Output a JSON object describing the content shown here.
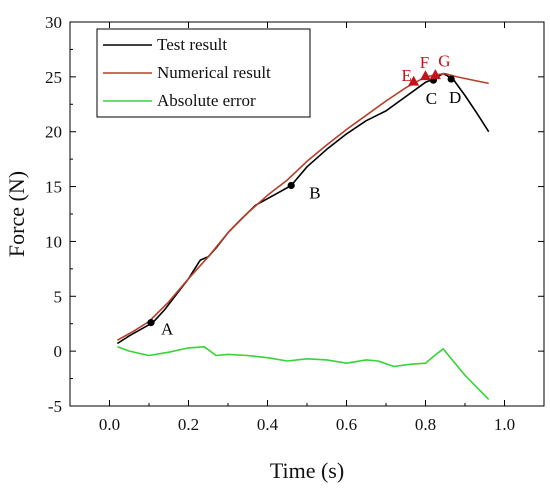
{
  "chart_data": {
    "type": "line",
    "xlabel": "Time (s)",
    "ylabel": "Force (N)",
    "xlim": [
      -0.1,
      1.1
    ],
    "ylim": [
      -5,
      30
    ],
    "xticks": [
      0.0,
      0.2,
      0.4,
      0.6,
      0.8,
      1.0
    ],
    "xtick_labels": [
      "0.0",
      "0.2",
      "0.4",
      "0.6",
      "0.8",
      "1.0"
    ],
    "yticks": [
      -5,
      0,
      5,
      10,
      15,
      20,
      25,
      30
    ],
    "ytick_labels": [
      "-5",
      "0",
      "5",
      "10",
      "15",
      "20",
      "25",
      "30"
    ],
    "grid": false,
    "legend_position": "top-left",
    "series": [
      {
        "name": "Test result",
        "color": "#000000",
        "x": [
          0.02,
          0.05,
          0.08,
          0.11,
          0.14,
          0.17,
          0.2,
          0.23,
          0.25,
          0.27,
          0.3,
          0.33,
          0.37,
          0.42,
          0.46,
          0.5,
          0.55,
          0.6,
          0.65,
          0.7,
          0.75,
          0.8,
          0.82,
          0.845,
          0.87,
          0.9,
          0.93,
          0.96
        ],
        "y": [
          0.7,
          1.4,
          2.0,
          2.6,
          3.8,
          5.2,
          6.6,
          8.3,
          8.6,
          9.4,
          10.8,
          11.9,
          13.3,
          14.3,
          15.1,
          16.8,
          18.4,
          19.8,
          21.0,
          21.9,
          23.2,
          24.5,
          24.8,
          25.3,
          24.8,
          23.3,
          21.7,
          20.0
        ]
      },
      {
        "name": "Numerical result",
        "color": "#b5402a",
        "x": [
          0.02,
          0.06,
          0.1,
          0.15,
          0.2,
          0.25,
          0.3,
          0.35,
          0.4,
          0.45,
          0.5,
          0.55,
          0.6,
          0.65,
          0.7,
          0.75,
          0.78,
          0.8,
          0.83,
          0.85,
          0.88,
          0.92,
          0.96
        ],
        "y": [
          1.0,
          1.8,
          2.7,
          4.5,
          6.6,
          8.6,
          10.8,
          12.6,
          14.2,
          15.6,
          17.3,
          18.8,
          20.2,
          21.5,
          22.8,
          24.0,
          24.6,
          25.0,
          25.2,
          25.3,
          25.0,
          24.7,
          24.4
        ]
      },
      {
        "name": "Absolute error",
        "color": "#38d338",
        "x": [
          0.02,
          0.05,
          0.1,
          0.15,
          0.2,
          0.24,
          0.27,
          0.3,
          0.35,
          0.4,
          0.45,
          0.5,
          0.55,
          0.6,
          0.65,
          0.68,
          0.72,
          0.76,
          0.8,
          0.83,
          0.845,
          0.87,
          0.9,
          0.93,
          0.96
        ],
        "y": [
          0.4,
          0.0,
          -0.4,
          -0.1,
          0.3,
          0.4,
          -0.4,
          -0.3,
          -0.4,
          -0.6,
          -0.9,
          -0.7,
          -0.8,
          -1.1,
          -0.8,
          -0.9,
          -1.4,
          -1.2,
          -1.1,
          -0.2,
          0.2,
          -0.9,
          -2.2,
          -3.3,
          -4.4
        ]
      }
    ],
    "points": [
      {
        "label": "A",
        "x": 0.105,
        "y": 2.6,
        "marker": "circle",
        "color": "#000000"
      },
      {
        "label": "B",
        "x": 0.46,
        "y": 15.1,
        "marker": "circle",
        "color": "#000000"
      },
      {
        "label": "C",
        "x": 0.82,
        "y": 24.7,
        "marker": "circle",
        "color": "#000000"
      },
      {
        "label": "D",
        "x": 0.865,
        "y": 24.8,
        "marker": "circle",
        "color": "#000000"
      },
      {
        "label": "E",
        "x": 0.77,
        "y": 24.6,
        "marker": "triangle",
        "color": "#c0151b"
      },
      {
        "label": "F",
        "x": 0.8,
        "y": 25.1,
        "marker": "triangle",
        "color": "#c0151b"
      },
      {
        "label": "G",
        "x": 0.825,
        "y": 25.2,
        "marker": "triangle",
        "color": "#c0151b"
      }
    ]
  }
}
